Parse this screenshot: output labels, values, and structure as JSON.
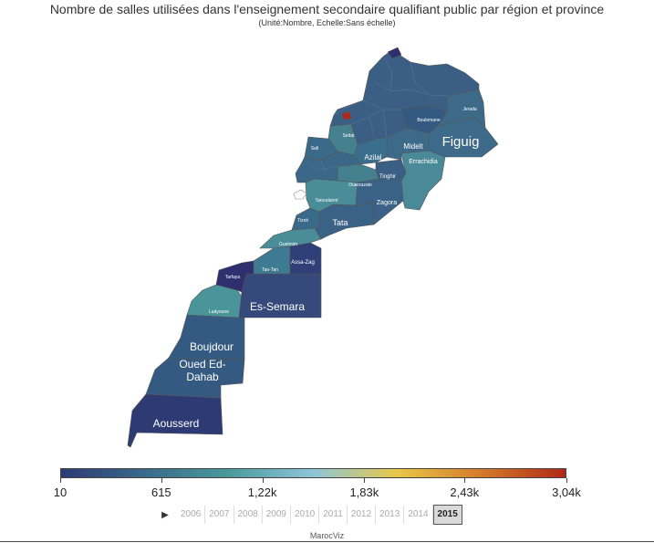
{
  "title": "Nombre de salles utilisées dans l'enseignement secondaire qualifiant public par région et province",
  "subtitle": "(Unité:Nombre, Echelle:Sans échelle)",
  "credit": "MarocViz",
  "legend": {
    "min": 10,
    "max": 3040,
    "ticks": [
      "10",
      "615",
      "1,22k",
      "1,83k",
      "2,43k",
      "3,04k"
    ],
    "tick_values": [
      10,
      615,
      1220,
      1830,
      2430,
      3040
    ],
    "colors": [
      "#2d3a74",
      "#3a6a8a",
      "#4a9a9c",
      "#8ec5d8",
      "#e8c84a",
      "#d47b2a",
      "#b02818"
    ]
  },
  "timeline": {
    "play_icon": "▶",
    "years": [
      "2006",
      "2007",
      "2008",
      "2009",
      "2010",
      "2011",
      "2012",
      "2013",
      "2014",
      "2015"
    ],
    "selected": "2015"
  },
  "provinces": [
    {
      "name": "Figuig",
      "color": "#3e6a8a"
    },
    {
      "name": "Es-Semara",
      "color": "#35497a"
    },
    {
      "name": "Boujdour",
      "color": "#355a82"
    },
    {
      "name": "Oued Ed-Dahab",
      "color": "#355a82"
    },
    {
      "name": "Aousserd",
      "color": "#2e3a74"
    },
    {
      "name": "Tata",
      "color": "#3a6286"
    },
    {
      "name": "Azilal",
      "color": "#3a6e8c"
    },
    {
      "name": "Midelt",
      "color": "#3e6a8a"
    },
    {
      "name": "Errachidia",
      "color": "#4a8a98"
    },
    {
      "name": "Tinghir",
      "color": "#3a5e84"
    },
    {
      "name": "Zagora",
      "color": "#3a6286"
    },
    {
      "name": "Ouarzazate",
      "color": "#45808f"
    },
    {
      "name": "Taroudannt",
      "color": "#4a8d98"
    },
    {
      "name": "Tiznit",
      "color": "#3a6a8a"
    },
    {
      "name": "Guelmim",
      "color": "#4a8d98"
    },
    {
      "name": "Tan-Tan",
      "color": "#3e7a92"
    },
    {
      "name": "Assa-Zag",
      "color": "#2f3f78"
    },
    {
      "name": "Tarfaya",
      "color": "#2d2f6e"
    },
    {
      "name": "Laâyoune",
      "color": "#4a9599"
    },
    {
      "name": "Boulemane",
      "color": "#355a82"
    },
    {
      "name": "Jerada",
      "color": "#3e6a8a"
    },
    {
      "name": "Settat",
      "color": "#45808f"
    },
    {
      "name": "Safi",
      "color": "#3a6a8a"
    }
  ]
}
